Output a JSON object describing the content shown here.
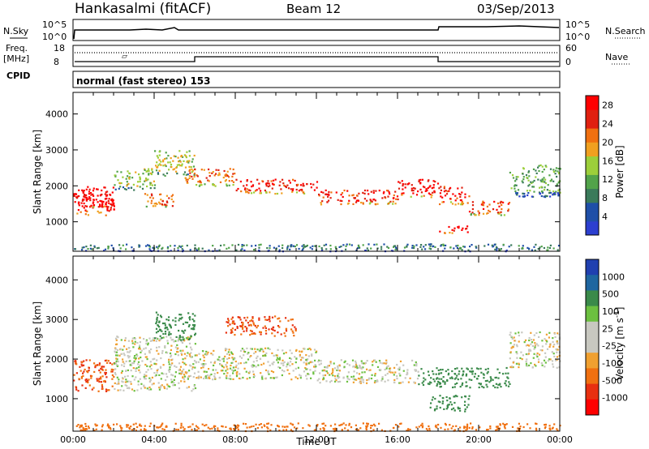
{
  "header": {
    "station": "Hankasalmi (fitACF)",
    "beam": "Beam 12",
    "date": "03/Sep/2013"
  },
  "sky_panel": {
    "left_label": "N.Sky",
    "right_label": "N.Search",
    "y_ticks_left": [
      "10^5",
      "10^0"
    ],
    "y_ticks_right": [
      "10^5",
      "10^0"
    ]
  },
  "freq_panel": {
    "left_label_top": "Freq.",
    "left_label_unit": "[MHz]",
    "cpid_label": "CPID",
    "y_ticks_left": [
      "18",
      "8"
    ],
    "right_label": "Nave",
    "y_ticks_right": [
      "60",
      "0"
    ]
  },
  "cpid_panel": {
    "text": "normal (fast stereo) 153"
  },
  "colors": {
    "power": [
      "#2c3fd0",
      "#1f4fa8",
      "#3a7a5a",
      "#52a34a",
      "#9ccf3a",
      "#f0a020",
      "#f07010",
      "#e02010",
      "#ff0000"
    ],
    "velocity": [
      "#2040b0",
      "#1f66a0",
      "#3a8a4a",
      "#6cc040",
      "#c8c8c0",
      "#c8c8c0",
      "#f0a030",
      "#f07010",
      "#e83010",
      "#ff0000"
    ]
  },
  "chart_data": [
    {
      "type": "heatmap",
      "title": "Power",
      "xlabel": "",
      "ylabel": "Slant Range [km]",
      "x_ticks": [
        "00:00",
        "04:00",
        "08:00",
        "12:00",
        "16:00",
        "20:00",
        "00:00"
      ],
      "x_range_hours": [
        0,
        24
      ],
      "y_ticks": [
        1000,
        2000,
        3000,
        4000
      ],
      "ylim": [
        180,
        4600
      ],
      "colorbar": {
        "label": "Power [dB]",
        "ticks": [
          "4",
          "8",
          "12",
          "16",
          "20",
          "24",
          "28"
        ],
        "range": [
          0,
          30
        ]
      },
      "bands": [
        {
          "t": [
            0.0,
            2.0
          ],
          "r": [
            1200,
            2000
          ],
          "level": 29
        },
        {
          "t": [
            0.0,
            2.0
          ],
          "r": [
            1400,
            1800
          ],
          "level": 28
        },
        {
          "t": [
            2.0,
            4.0
          ],
          "r": [
            1900,
            2500
          ],
          "level": 14
        },
        {
          "t": [
            3.5,
            5.0
          ],
          "r": [
            1400,
            1800
          ],
          "level": 22
        },
        {
          "t": [
            4.0,
            6.0
          ],
          "r": [
            2300,
            3000
          ],
          "level": 16
        },
        {
          "t": [
            5.5,
            8.0
          ],
          "r": [
            2000,
            2500
          ],
          "level": 22
        },
        {
          "t": [
            8.0,
            12.0
          ],
          "r": [
            1800,
            2200
          ],
          "level": 26
        },
        {
          "t": [
            12.0,
            16.0
          ],
          "r": [
            1500,
            1900
          ],
          "level": 26
        },
        {
          "t": [
            16.0,
            18.0
          ],
          "r": [
            1700,
            2200
          ],
          "level": 28
        },
        {
          "t": [
            18.0,
            19.5
          ],
          "r": [
            1500,
            2000
          ],
          "level": 26
        },
        {
          "t": [
            18.0,
            19.5
          ],
          "r": [
            700,
            900
          ],
          "level": 28
        },
        {
          "t": [
            19.5,
            21.5
          ],
          "r": [
            1200,
            1600
          ],
          "level": 24
        },
        {
          "t": [
            21.5,
            24.0
          ],
          "r": [
            1700,
            2600
          ],
          "level": 12
        },
        {
          "t": [
            0.0,
            24.0
          ],
          "r": [
            200,
            400
          ],
          "level": 8
        }
      ]
    },
    {
      "type": "heatmap",
      "title": "Velocity",
      "xlabel": "Time UT",
      "ylabel": "Slant Range [km]",
      "x_ticks": [
        "00:00",
        "04:00",
        "08:00",
        "12:00",
        "16:00",
        "20:00",
        "00:00"
      ],
      "x_range_hours": [
        0,
        24
      ],
      "y_ticks": [
        1000,
        2000,
        3000,
        4000
      ],
      "ylim": [
        180,
        4600
      ],
      "colorbar": {
        "label": "Velocity [m s^-1]",
        "ticks": [
          "1000",
          "500",
          "100",
          "25",
          "-25",
          "-100",
          "-500",
          "-1000"
        ]
      },
      "bands": [
        {
          "t": [
            0.0,
            2.0
          ],
          "r": [
            1200,
            2000
          ],
          "v": -300
        },
        {
          "t": [
            2.0,
            6.0
          ],
          "r": [
            1200,
            2600
          ],
          "v": 0
        },
        {
          "t": [
            4.0,
            6.0
          ],
          "r": [
            2500,
            3200
          ],
          "v": 150
        },
        {
          "t": [
            6.0,
            12.0
          ],
          "r": [
            1500,
            2300
          ],
          "v": 0
        },
        {
          "t": [
            7.5,
            11.0
          ],
          "r": [
            2600,
            3100
          ],
          "v": -300
        },
        {
          "t": [
            12.0,
            17.0
          ],
          "r": [
            1400,
            2000
          ],
          "v": 0
        },
        {
          "t": [
            17.0,
            21.5
          ],
          "r": [
            1300,
            1800
          ],
          "v": 150
        },
        {
          "t": [
            17.5,
            19.5
          ],
          "r": [
            700,
            1100
          ],
          "v": 200
        },
        {
          "t": [
            21.5,
            24.0
          ],
          "r": [
            1800,
            2700
          ],
          "v": 0
        },
        {
          "t": [
            0.0,
            24.0
          ],
          "r": [
            200,
            400
          ],
          "v": -120
        }
      ]
    }
  ]
}
